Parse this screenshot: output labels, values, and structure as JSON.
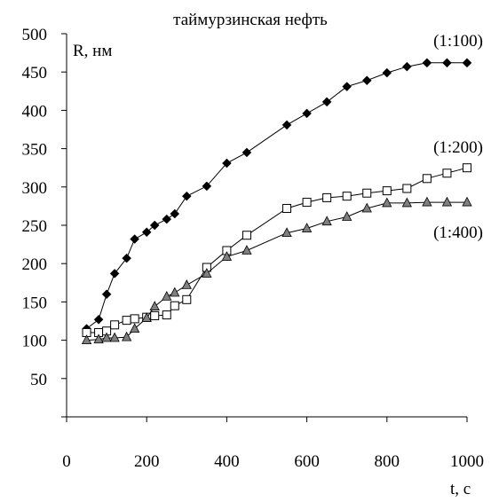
{
  "chart_data": {
    "type": "line",
    "title": "таймурзинская нефть",
    "ylabel": "R, нм",
    "xlabel": "t, c",
    "xlim": [
      0,
      1000
    ],
    "ylim": [
      0,
      500
    ],
    "xticks": [
      0,
      200,
      400,
      600,
      800,
      1000
    ],
    "yticks": [
      50,
      100,
      150,
      200,
      250,
      300,
      350,
      400,
      450,
      500
    ],
    "grid": false,
    "series": [
      {
        "name": "(1:100)",
        "marker": "diamond",
        "color": "#000000",
        "x": [
          50,
          80,
          100,
          120,
          150,
          170,
          200,
          220,
          250,
          270,
          300,
          350,
          400,
          450,
          550,
          600,
          650,
          700,
          750,
          800,
          850,
          900,
          950,
          1000
        ],
        "y": [
          115,
          127,
          160,
          187,
          207,
          232,
          241,
          250,
          258,
          265,
          288,
          301,
          331,
          345,
          381,
          396,
          411,
          431,
          439,
          449,
          457,
          462,
          462,
          462
        ]
      },
      {
        "name": "(1:200)",
        "marker": "square-open",
        "color": "#000000",
        "x": [
          50,
          80,
          100,
          120,
          150,
          170,
          200,
          220,
          250,
          270,
          300,
          350,
          400,
          450,
          550,
          600,
          650,
          700,
          750,
          800,
          850,
          900,
          950,
          1000
        ],
        "y": [
          110,
          110,
          112,
          120,
          126,
          128,
          130,
          132,
          133,
          145,
          153,
          195,
          217,
          237,
          272,
          280,
          286,
          288,
          292,
          295,
          298,
          311,
          318,
          325
        ]
      },
      {
        "name": "(1:400)",
        "marker": "triangle",
        "color": "#808080",
        "x": [
          50,
          80,
          100,
          120,
          150,
          170,
          200,
          220,
          250,
          270,
          300,
          350,
          400,
          450,
          550,
          600,
          650,
          700,
          750,
          800,
          850,
          900,
          950,
          1000
        ],
        "y": [
          100,
          101,
          103,
          103,
          104,
          115,
          129,
          144,
          157,
          162,
          172,
          187,
          209,
          217,
          240,
          246,
          255,
          261,
          272,
          279,
          279,
          280,
          280,
          280
        ]
      }
    ]
  }
}
